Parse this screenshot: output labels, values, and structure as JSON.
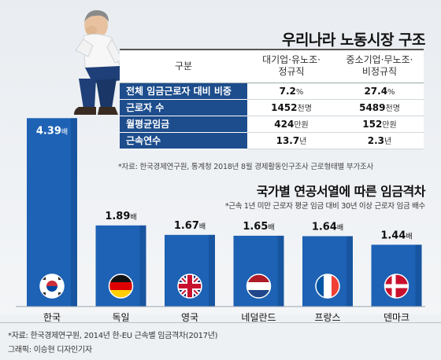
{
  "title": "우리나라 노동시장 구조",
  "table": {
    "header": [
      "구분",
      "대기업·유노조·\n정규직",
      "중소기업·무노조·\n비정규직"
    ],
    "rows": [
      {
        "label": "전체 임금근로자 대비 비중",
        "a": "7.2",
        "a_unit": "%",
        "b": "27.4",
        "b_unit": "%"
      },
      {
        "label": "근로자 수",
        "a": "1452",
        "a_unit": "천명",
        "b": "5489",
        "b_unit": "천명"
      },
      {
        "label": "월평균임금",
        "a": "424",
        "a_unit": "만원",
        "b": "152",
        "b_unit": "만원"
      },
      {
        "label": "근속연수",
        "a": "13.7",
        "a_unit": "년",
        "b": "2.3",
        "b_unit": "년"
      }
    ],
    "source": "*자료: 한국경제연구원, 통계청 2018년 8월 경제활동인구조사 근로형태별 부가조사"
  },
  "subtitle": "국가별 연공서열에 따른 임금격차",
  "note": "*근속 1년 미만 근로자 평균 임금 대비 30년 이상 근로자 임금 배수",
  "chart_data": {
    "type": "bar",
    "categories": [
      "한국",
      "독일",
      "영국",
      "네덜란드",
      "프랑스",
      "덴마크"
    ],
    "values": [
      4.39,
      1.89,
      1.67,
      1.65,
      1.64,
      1.44
    ],
    "value_labels": [
      "4.39",
      "1.89",
      "1.67",
      "1.65",
      "1.64",
      "1.44"
    ],
    "unit": "배",
    "flags": [
      "korea-flag-icon",
      "germany-flag-icon",
      "uk-flag-icon",
      "netherlands-flag-icon",
      "france-flag-icon",
      "denmark-flag-icon"
    ],
    "colors": {
      "bar": "#1d62b4",
      "bar_dark": "#144b8f"
    }
  },
  "source2": "*자료: 한국경제연구원, 2014년 한-EU 근속별 임금격차(2017년)",
  "credit": "그래픽: 이승현 디자인기자"
}
